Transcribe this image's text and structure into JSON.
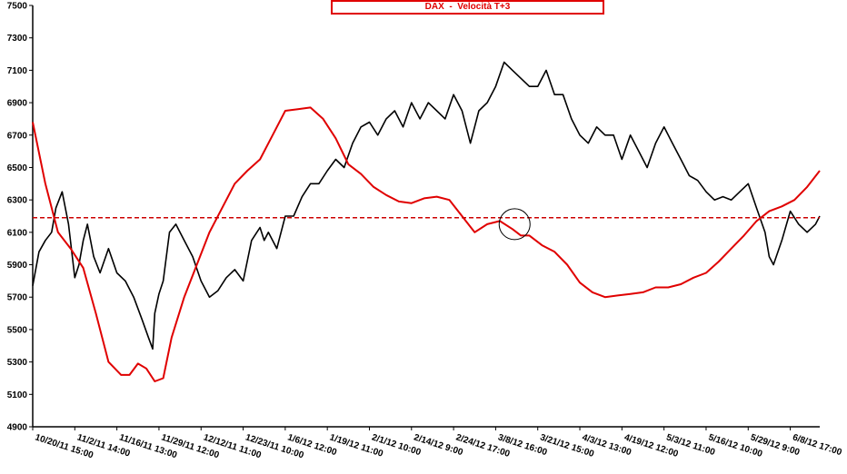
{
  "chart_data": {
    "type": "line",
    "title": "DAX  -  Velocità T+3",
    "xlabel": "",
    "ylabel": "",
    "ylim": [
      4900,
      7500
    ],
    "yticks": [
      4900,
      5100,
      5300,
      5500,
      5700,
      5900,
      6100,
      6300,
      6500,
      6700,
      6900,
      7100,
      7300,
      7500
    ],
    "grid": false,
    "legend": "none",
    "x_tick_labels": [
      "10/20/11 15:00",
      "11/2/11 14:00",
      "11/16/11 13:00",
      "11/29/11 12:00",
      "12/12/11 11:00",
      "12/23/11 10:00",
      "1/6/12 12:00",
      "1/19/12 11:00",
      "2/1/12 10:00",
      "2/14/12 9:00",
      "2/24/12 17:00",
      "3/8/12 16:00",
      "3/21/12 15:00",
      "4/3/12 13:00",
      "4/19/12 12:00",
      "5/3/12 11:00",
      "5/16/12 10:00",
      "5/29/12 9:00",
      "6/8/12 17:00"
    ],
    "x_range": [
      0,
      18.7
    ],
    "reference_line": {
      "y": 6190,
      "style": "dashed",
      "color": "#cc0000"
    },
    "highlight_circle": {
      "x": 11.45,
      "y": 6150
    },
    "colors": {
      "price": "#000000",
      "velocity": "#e00000",
      "title": "#e00000"
    },
    "series": [
      {
        "color": "#000000",
        "x": [
          0,
          0.15,
          0.3,
          0.45,
          0.55,
          0.7,
          0.85,
          1.0,
          1.1,
          1.2,
          1.3,
          1.45,
          1.6,
          1.8,
          2.0,
          2.2,
          2.4,
          2.6,
          2.75,
          2.85,
          2.9,
          3.0,
          3.1,
          3.25,
          3.4,
          3.6,
          3.8,
          4.0,
          4.2,
          4.4,
          4.6,
          4.8,
          5.0,
          5.2,
          5.4,
          5.5,
          5.6,
          5.8,
          6.0,
          6.2,
          6.4,
          6.6,
          6.8,
          7.0,
          7.2,
          7.4,
          7.6,
          7.8,
          8.0,
          8.2,
          8.4,
          8.6,
          8.8,
          9.0,
          9.2,
          9.4,
          9.6,
          9.8,
          10.0,
          10.2,
          10.4,
          10.6,
          10.8,
          11.0,
          11.2,
          11.4,
          11.6,
          11.8,
          12.0,
          12.2,
          12.4,
          12.6,
          12.8,
          13.0,
          13.2,
          13.4,
          13.6,
          13.8,
          14.0,
          14.2,
          14.4,
          14.6,
          14.8,
          15.0,
          15.2,
          15.4,
          15.6,
          15.8,
          16.0,
          16.2,
          16.4,
          16.6,
          16.8,
          17.0,
          17.2,
          17.4,
          17.5,
          17.6,
          17.8,
          18.0,
          18.2,
          18.4,
          18.6,
          18.7
        ],
        "values": [
          5770,
          5980,
          6050,
          6100,
          6250,
          6350,
          6150,
          5820,
          5900,
          6050,
          6150,
          5950,
          5850,
          6000,
          5850,
          5800,
          5700,
          5560,
          5450,
          5380,
          5600,
          5720,
          5800,
          6100,
          6150,
          6050,
          5950,
          5800,
          5700,
          5740,
          5820,
          5870,
          5800,
          6050,
          6130,
          6050,
          6100,
          6000,
          6200,
          6200,
          6320,
          6400,
          6400,
          6480,
          6550,
          6500,
          6650,
          6750,
          6780,
          6700,
          6800,
          6850,
          6750,
          6900,
          6800,
          6900,
          6850,
          6800,
          6950,
          6850,
          6650,
          6850,
          6900,
          7000,
          7150,
          7100,
          7050,
          7000,
          7000,
          7100,
          6950,
          6950,
          6800,
          6700,
          6650,
          6750,
          6700,
          6700,
          6550,
          6700,
          6600,
          6500,
          6650,
          6750,
          6650,
          6550,
          6450,
          6420,
          6350,
          6300,
          6320,
          6300,
          6350,
          6400,
          6250,
          6100,
          5950,
          5900,
          6050,
          6230,
          6150,
          6100,
          6150,
          6200
        ]
      },
      {
        "color": "#e00000",
        "x": [
          0,
          0.3,
          0.6,
          0.9,
          1.2,
          1.5,
          1.8,
          2.1,
          2.3,
          2.5,
          2.7,
          2.9,
          3.1,
          3.3,
          3.6,
          3.9,
          4.2,
          4.5,
          4.8,
          5.1,
          5.4,
          5.7,
          6.0,
          6.3,
          6.6,
          6.9,
          7.2,
          7.5,
          7.8,
          8.1,
          8.4,
          8.7,
          9.0,
          9.3,
          9.6,
          9.9,
          10.2,
          10.5,
          10.8,
          11.1,
          11.4,
          11.6,
          11.8,
          12.1,
          12.4,
          12.7,
          13.0,
          13.3,
          13.6,
          13.9,
          14.2,
          14.5,
          14.8,
          15.1,
          15.4,
          15.7,
          16.0,
          16.3,
          16.6,
          16.9,
          17.2,
          17.5,
          17.8,
          18.1,
          18.4,
          18.7
        ],
        "values": [
          6780,
          6400,
          6100,
          6000,
          5880,
          5600,
          5300,
          5220,
          5220,
          5290,
          5260,
          5180,
          5200,
          5450,
          5700,
          5900,
          6100,
          6250,
          6400,
          6480,
          6550,
          6700,
          6850,
          6860,
          6870,
          6800,
          6680,
          6520,
          6460,
          6380,
          6330,
          6290,
          6280,
          6310,
          6320,
          6300,
          6200,
          6100,
          6150,
          6170,
          6120,
          6080,
          6080,
          6020,
          5980,
          5900,
          5790,
          5730,
          5700,
          5710,
          5720,
          5730,
          5760,
          5760,
          5780,
          5820,
          5850,
          5920,
          6000,
          6080,
          6170,
          6230,
          6260,
          6300,
          6380,
          6480
        ]
      }
    ]
  }
}
